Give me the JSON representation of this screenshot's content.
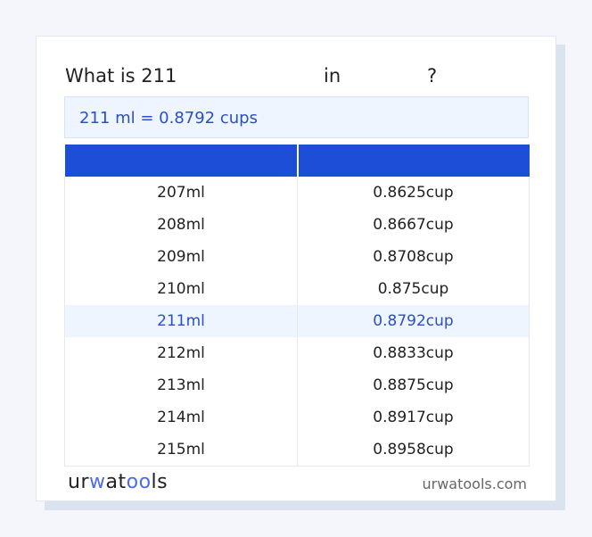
{
  "title": {
    "prefix": "What is 211",
    "in": "in",
    "q": "?"
  },
  "result": "211 ml = 0.8792 cups",
  "table": {
    "headers": [
      "",
      ""
    ],
    "rows": [
      [
        "207ml",
        "0.8625cup"
      ],
      [
        "208ml",
        "0.8667cup"
      ],
      [
        "209ml",
        "0.8708cup"
      ],
      [
        "210ml",
        "0.875cup"
      ],
      [
        "211ml",
        "0.8792cup"
      ],
      [
        "212ml",
        "0.8833cup"
      ],
      [
        "213ml",
        "0.8875cup"
      ],
      [
        "214ml",
        "0.8917cup"
      ],
      [
        "215ml",
        "0.8958cup"
      ]
    ],
    "highlight_index": 4
  },
  "footer": {
    "logo": "urwatools",
    "site": "urwatools.com"
  },
  "colors": {
    "accent": "#1d4ed8",
    "highlight_bg": "#eef5ff",
    "result_text": "#2b4fc4"
  }
}
